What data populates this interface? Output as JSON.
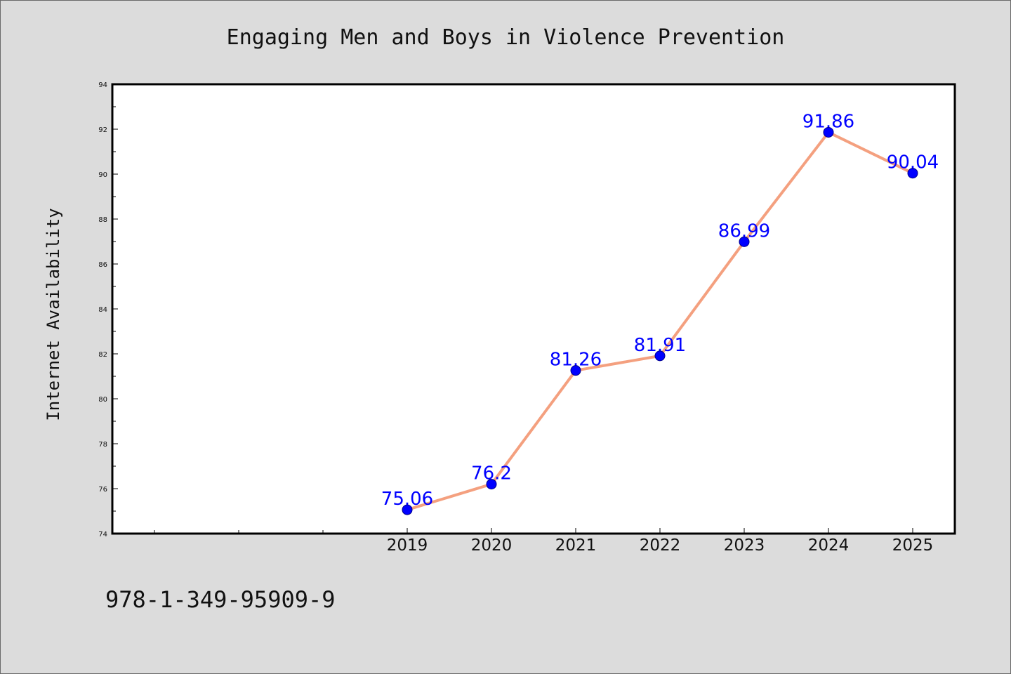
{
  "chart_data": {
    "type": "line",
    "title": "Engaging Men and Boys in Violence Prevention",
    "xlabel": "",
    "ylabel": "Internet Availability",
    "categories": [
      "2019",
      "2020",
      "2021",
      "2022",
      "2023",
      "2024",
      "2025"
    ],
    "series": [
      {
        "values": [
          75.06,
          76.2,
          81.26,
          81.91,
          86.99,
          91.86,
          90.04
        ],
        "labels": [
          "75.06",
          "76.2",
          "81.26",
          "81.91",
          "86.99",
          "91.86",
          "90.04"
        ]
      }
    ],
    "ylim": [
      74,
      94
    ],
    "yticks": [
      "74",
      "76",
      "78",
      "80",
      "82",
      "84",
      "86",
      "88",
      "90",
      "92",
      "94"
    ],
    "grid": false,
    "colors": {
      "line": "#f4a07f",
      "marker": "#0000ff",
      "data_label": "#0000ff",
      "background": "#dcdcdc",
      "plot_background": "#ffffff"
    }
  },
  "footnote": "978-1-349-95909-9"
}
